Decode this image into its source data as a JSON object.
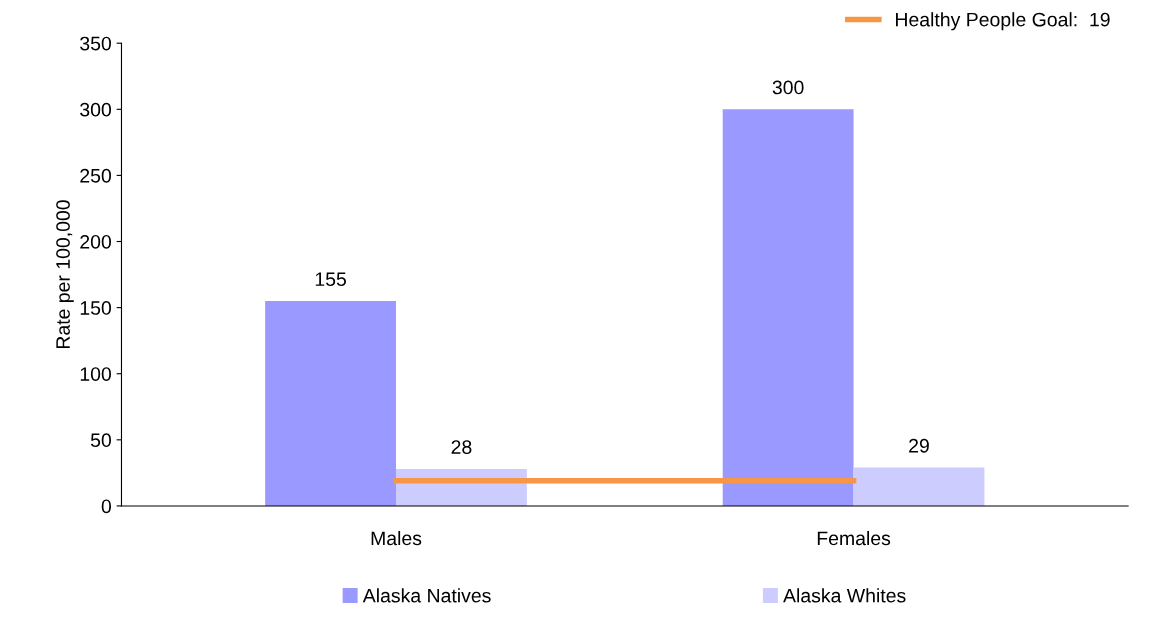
{
  "chart_data": {
    "type": "bar",
    "ylabel": "Rate per 100,000",
    "categories": [
      "Males",
      "Females"
    ],
    "series": [
      {
        "name": "Alaska Natives",
        "color": "#9999ff",
        "values": [
          155,
          300
        ],
        "value_labels": [
          "155",
          "300"
        ]
      },
      {
        "name": "Alaska Whites",
        "color": "#ccccff",
        "values": [
          28,
          29
        ],
        "value_labels": [
          "28",
          "29"
        ]
      },
      {
        "name": "Healthy People Goal:  19",
        "color": "#f79646",
        "type": "line",
        "values": [
          19,
          19
        ]
      }
    ],
    "ylim": [
      0,
      350
    ],
    "yticks": [
      0,
      50,
      100,
      150,
      200,
      250,
      300,
      350
    ],
    "grid": false,
    "legend": "bottom"
  }
}
